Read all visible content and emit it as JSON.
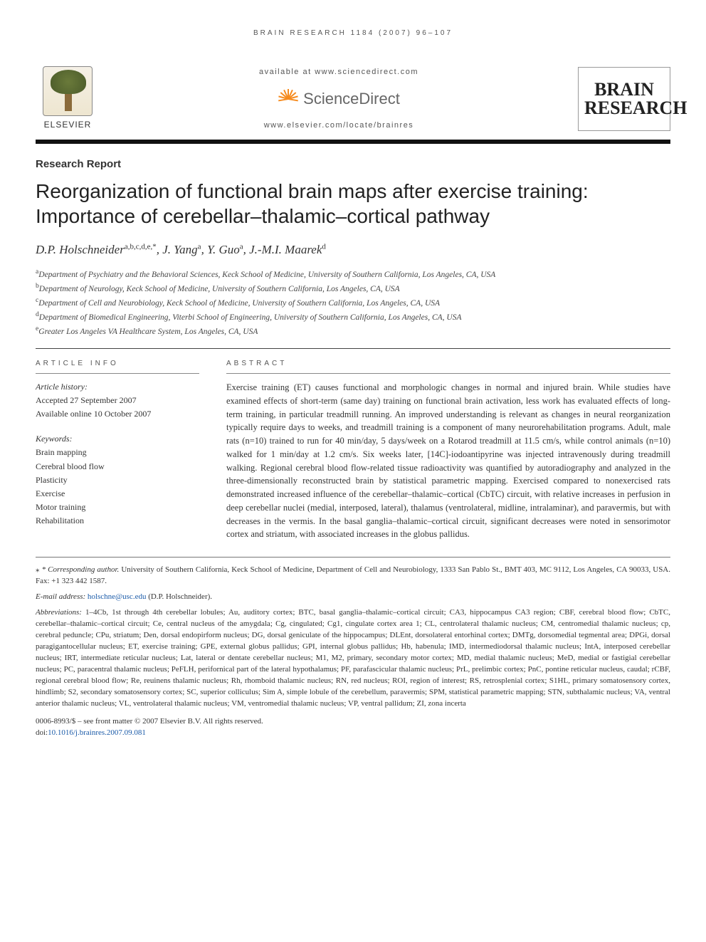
{
  "colors": {
    "text": "#333333",
    "rule": "#111111",
    "link": "#1a5aa8",
    "sd_orange": "#f68b1f",
    "background": "#ffffff"
  },
  "typography": {
    "body_family": "Georgia, Times New Roman, serif",
    "sans_family": "Arial, sans-serif",
    "title_size_pt": 21,
    "author_size_pt": 13,
    "abstract_size_pt": 9.5,
    "footnote_size_pt": 8.5
  },
  "running_head": "BRAIN RESEARCH 1184 (2007) 96–107",
  "header": {
    "publisher_name": "ELSEVIER",
    "available_line": "available at www.sciencedirect.com",
    "sd_logo_text_plain": "ScienceDirect",
    "locate_line": "www.elsevier.com/locate/brainres",
    "journal_logo_line1": "BRAIN",
    "journal_logo_line2": "RESEARCH"
  },
  "article": {
    "section_label": "Research Report",
    "title": "Reorganization of functional brain maps after exercise training: Importance of cerebellar–thalamic–cortical pathway",
    "authors_html": "D.P. Holschneider<sup>a,b,c,d,e,*</sup>, J. Yang<sup>a</sup>, Y. Guo<sup>a</sup>, J.-M.I. Maarek<sup>d</sup>",
    "affiliations": [
      "aDepartment of Psychiatry and the Behavioral Sciences, Keck School of Medicine, University of Southern California, Los Angeles, CA, USA",
      "bDepartment of Neurology, Keck School of Medicine, University of Southern California, Los Angeles, CA, USA",
      "cDepartment of Cell and Neurobiology, Keck School of Medicine, University of Southern California, Los Angeles, CA, USA",
      "dDepartment of Biomedical Engineering, Viterbi School of Engineering, University of Southern California, Los Angeles, CA, USA",
      "eGreater Los Angeles VA Healthcare System, Los Angeles, CA, USA"
    ]
  },
  "article_info": {
    "heading": "ARTICLE INFO",
    "history_label": "Article history:",
    "accepted": "Accepted 27 September 2007",
    "online": "Available online 10 October 2007",
    "keywords_label": "Keywords:",
    "keywords": [
      "Brain mapping",
      "Cerebral blood flow",
      "Plasticity",
      "Exercise",
      "Motor training",
      "Rehabilitation"
    ]
  },
  "abstract": {
    "heading": "ABSTRACT",
    "text": "Exercise training (ET) causes functional and morphologic changes in normal and injured brain. While studies have examined effects of short-term (same day) training on functional brain activation, less work has evaluated effects of long-term training, in particular treadmill running. An improved understanding is relevant as changes in neural reorganization typically require days to weeks, and treadmill training is a component of many neurorehabilitation programs. Adult, male rats (n=10) trained to run for 40 min/day, 5 days/week on a Rotarod treadmill at 11.5 cm/s, while control animals (n=10) walked for 1 min/day at 1.2 cm/s. Six weeks later, [14C]-iodoantipyrine was injected intravenously during treadmill walking. Regional cerebral blood flow-related tissue radioactivity was quantified by autoradiography and analyzed in the three-dimensionally reconstructed brain by statistical parametric mapping. Exercised compared to nonexercised rats demonstrated increased influence of the cerebellar–thalamic–cortical (CbTC) circuit, with relative increases in perfusion in deep cerebellar nuclei (medial, interposed, lateral), thalamus (ventrolateral, midline, intralaminar), and paravermis, but with decreases in the vermis. In the basal ganglia–thalamic–cortical circuit, significant decreases were noted in sensorimotor cortex and striatum, with associated increases in the globus pallidus."
  },
  "footnotes": {
    "corresponding_label": "* Corresponding author.",
    "corresponding_text": " University of Southern California, Keck School of Medicine, Department of Cell and Neurobiology, 1333 San Pablo St., BMT 403, MC 9112, Los Angeles, CA 90033, USA. Fax: +1 323 442 1587.",
    "email_label": "E-mail address: ",
    "email": "holschne@usc.edu",
    "email_paren": " (D.P. Holschneider).",
    "abbr_label": "Abbreviations: ",
    "abbr_text": "1–4Cb, 1st through 4th cerebellar lobules; Au, auditory cortex; BTC, basal ganglia–thalamic–cortical circuit; CA3, hippocampus CA3 region; CBF, cerebral blood flow; CbTC, cerebellar–thalamic–cortical circuit; Ce, central nucleus of the amygdala; Cg, cingulated; Cg1, cingulate cortex area 1; CL, centrolateral thalamic nucleus; CM, centromedial thalamic nucleus; cp, cerebral peduncle; CPu, striatum; Den, dorsal endopirform nucleus; DG, dorsal geniculate of the hippocampus; DLEnt, dorsolateral entorhinal cortex; DMTg, dorsomedial tegmental area; DPGi, dorsal paragigantocellular nucleus; ET, exercise training; GPE, external globus pallidus; GPI, internal globus pallidus; Hb, habenula; IMD, intermediodorsal thalamic nucleus; IntA, interposed cerebellar nucleus; IRT, intermediate reticular nucleus; Lat, lateral or dentate cerebellar nucleus; M1, M2, primary, secondary motor cortex; MD, medial thalamic nucleus; MeD, medial or fastigial cerebellar nucleus; PC, paracentral thalamic nucleus; PeFLH, perifornical part of the lateral hypothalamus; PF, parafascicular thalamic nucleus; PrL, prelimbic cortex; PnC, pontine reticular nucleus, caudal; rCBF, regional cerebral blood flow; Re, reuinens thalamic nucleus; Rh, rhomboid thalamic nucleus; RN, red nucleus; ROI, region of interest; RS, retrosplenial cortex; S1HL, primary somatosensory cortex, hindlimb; S2, secondary somatosensory cortex; SC, superior colliculus; Sim A, simple lobule of the cerebellum, paravermis; SPM, statistical parametric mapping; STN, subthalamic nucleus; VA, ventral anterior thalamic nucleus; VL, ventrolateral thalamic nucleus; VM, ventromedial thalamic nucleus; VP, ventral pallidum; ZI, zona incerta"
  },
  "footer": {
    "issn_line": "0006-8993/$ – see front matter © 2007 Elsevier B.V. All rights reserved.",
    "doi_label": "doi:",
    "doi": "10.1016/j.brainres.2007.09.081"
  }
}
